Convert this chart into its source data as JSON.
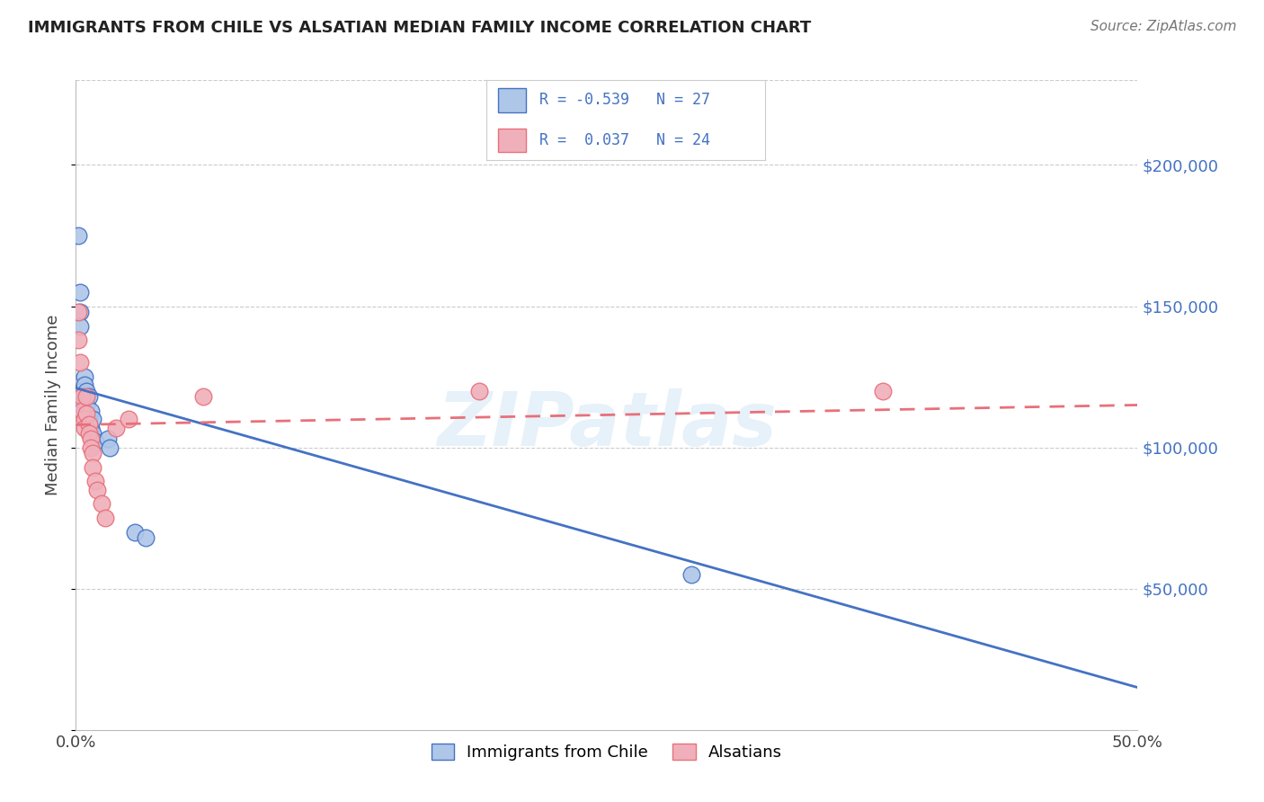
{
  "title": "IMMIGRANTS FROM CHILE VS ALSATIAN MEDIAN FAMILY INCOME CORRELATION CHART",
  "source": "Source: ZipAtlas.com",
  "ylabel": "Median Family Income",
  "legend_blue_r": "R = -0.539",
  "legend_blue_n": "N = 27",
  "legend_pink_r": "R =  0.037",
  "legend_pink_n": "N = 24",
  "legend_label_blue": "Immigrants from Chile",
  "legend_label_pink": "Alsatians",
  "ytick_values": [
    50000,
    100000,
    150000,
    200000
  ],
  "xlim": [
    0.0,
    0.5
  ],
  "ylim": [
    0,
    230000
  ],
  "blue_scatter": [
    [
      0.001,
      175000
    ],
    [
      0.002,
      155000
    ],
    [
      0.002,
      148000
    ],
    [
      0.002,
      143000
    ],
    [
      0.003,
      120000
    ],
    [
      0.003,
      118000
    ],
    [
      0.003,
      115000
    ],
    [
      0.004,
      125000
    ],
    [
      0.004,
      122000
    ],
    [
      0.004,
      118000
    ],
    [
      0.004,
      113000
    ],
    [
      0.005,
      120000
    ],
    [
      0.005,
      115000
    ],
    [
      0.005,
      112000
    ],
    [
      0.006,
      118000
    ],
    [
      0.006,
      110000
    ],
    [
      0.006,
      108000
    ],
    [
      0.007,
      113000
    ],
    [
      0.007,
      107000
    ],
    [
      0.008,
      110000
    ],
    [
      0.008,
      105000
    ],
    [
      0.009,
      102000
    ],
    [
      0.015,
      103000
    ],
    [
      0.016,
      100000
    ],
    [
      0.028,
      70000
    ],
    [
      0.033,
      68000
    ],
    [
      0.29,
      55000
    ]
  ],
  "pink_scatter": [
    [
      0.001,
      148000
    ],
    [
      0.001,
      138000
    ],
    [
      0.002,
      130000
    ],
    [
      0.003,
      118000
    ],
    [
      0.003,
      113000
    ],
    [
      0.004,
      110000
    ],
    [
      0.004,
      107000
    ],
    [
      0.005,
      118000
    ],
    [
      0.005,
      112000
    ],
    [
      0.006,
      108000
    ],
    [
      0.006,
      105000
    ],
    [
      0.007,
      103000
    ],
    [
      0.007,
      100000
    ],
    [
      0.008,
      98000
    ],
    [
      0.008,
      93000
    ],
    [
      0.009,
      88000
    ],
    [
      0.01,
      85000
    ],
    [
      0.012,
      80000
    ],
    [
      0.014,
      75000
    ],
    [
      0.019,
      107000
    ],
    [
      0.025,
      110000
    ],
    [
      0.06,
      118000
    ],
    [
      0.19,
      120000
    ],
    [
      0.38,
      120000
    ]
  ],
  "blue_line_color": "#4472C4",
  "pink_line_color": "#E8707A",
  "blue_scatter_facecolor": "#AEC6E8",
  "pink_scatter_facecolor": "#F0B0BB",
  "watermark": "ZIPatlas",
  "background_color": "#ffffff",
  "grid_color": "#cccccc"
}
